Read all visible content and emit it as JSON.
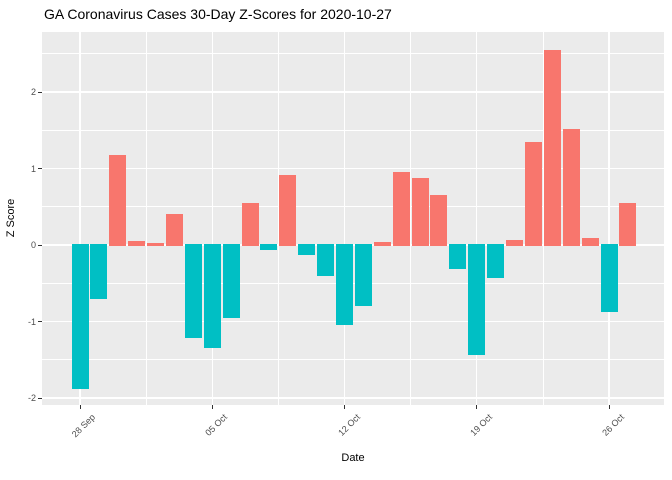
{
  "chart_data": {
    "type": "bar",
    "title": "GA Coronavirus Cases 30-Day Z-Scores for 2020-10-27",
    "xlabel": "Date",
    "ylabel": "Z Score",
    "x_tick_labels": [
      "28 Sep",
      "05 Oct",
      "12 Oct",
      "19 Oct",
      "26 Oct"
    ],
    "x_tick_day_indices": [
      0,
      7,
      14,
      21,
      28
    ],
    "y_tick_labels": [
      "2",
      "1",
      "0",
      "-1",
      "-2"
    ],
    "y_tick_values": [
      2,
      1,
      0,
      -1,
      -2
    ],
    "ylim": [
      -2.1,
      2.77
    ],
    "grid": "major-and-minor, white on gray panel",
    "legend": "none",
    "categories": [
      "2020-09-28",
      "2020-09-29",
      "2020-09-30",
      "2020-10-01",
      "2020-10-02",
      "2020-10-03",
      "2020-10-04",
      "2020-10-05",
      "2020-10-06",
      "2020-10-07",
      "2020-10-08",
      "2020-10-09",
      "2020-10-10",
      "2020-10-11",
      "2020-10-12",
      "2020-10-13",
      "2020-10-14",
      "2020-10-15",
      "2020-10-16",
      "2020-10-17",
      "2020-10-18",
      "2020-10-19",
      "2020-10-20",
      "2020-10-21",
      "2020-10-22",
      "2020-10-23",
      "2020-10-24",
      "2020-10-25",
      "2020-10-26",
      "2020-10-27"
    ],
    "values": [
      -1.88,
      -0.7,
      1.17,
      0.05,
      0.03,
      0.41,
      -1.21,
      -1.34,
      -0.95,
      0.55,
      -0.06,
      0.91,
      -0.13,
      -0.4,
      -1.05,
      -0.8,
      0.04,
      0.96,
      0.87,
      0.66,
      -0.32,
      -1.44,
      -0.43,
      0.07,
      1.35,
      2.55,
      1.52,
      0.09,
      -0.88,
      0.55
    ],
    "colors": {
      "positive_bar": "#F8766D",
      "negative_bar": "#00BFC4",
      "panel_background": "#EBEBEB",
      "gridline": "#FFFFFF",
      "axis_text": "#4D4D4D",
      "tick_mark": "#333333",
      "title_text": "#000000"
    }
  }
}
